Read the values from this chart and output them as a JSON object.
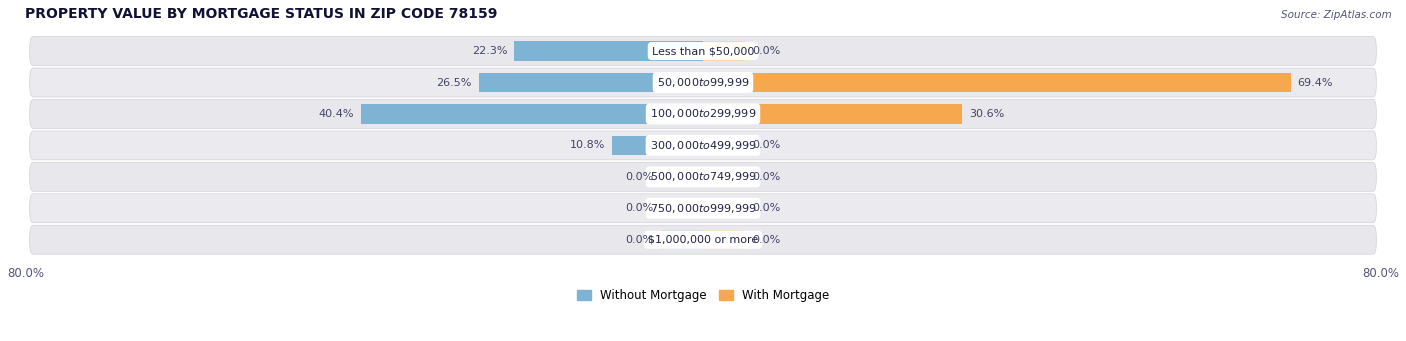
{
  "title": "PROPERTY VALUE BY MORTGAGE STATUS IN ZIP CODE 78159",
  "source": "Source: ZipAtlas.com",
  "categories": [
    "Less than $50,000",
    "$50,000 to $99,999",
    "$100,000 to $299,999",
    "$300,000 to $499,999",
    "$500,000 to $749,999",
    "$750,000 to $999,999",
    "$1,000,000 or more"
  ],
  "without_mortgage": [
    22.3,
    26.5,
    40.4,
    10.8,
    0.0,
    0.0,
    0.0
  ],
  "with_mortgage": [
    0.0,
    69.4,
    30.6,
    0.0,
    0.0,
    0.0,
    0.0
  ],
  "color_without": "#7fb3d3",
  "color_with": "#f5a84e",
  "color_without_zero": "#b8d5e8",
  "color_with_zero": "#fad4a6",
  "row_bg_color": "#e8e8ec",
  "row_bg_color_alt": "#f0f0f4",
  "xlim": [
    -80,
    80
  ],
  "zero_stub": 5.0,
  "legend_without": "Without Mortgage",
  "legend_with": "With Mortgage",
  "title_fontsize": 10,
  "cat_fontsize": 8,
  "val_fontsize": 8,
  "bar_height": 0.62,
  "figwidth": 14.06,
  "figheight": 3.41,
  "dpi": 100
}
